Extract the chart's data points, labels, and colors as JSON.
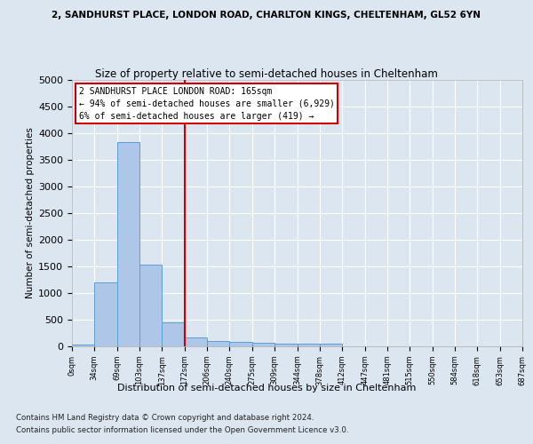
{
  "suptitle": "2, SANDHURST PLACE, LONDON ROAD, CHARLTON KINGS, CHELTENHAM, GL52 6YN",
  "title": "Size of property relative to semi-detached houses in Cheltenham",
  "xlabel": "Distribution of semi-detached houses by size in Cheltenham",
  "ylabel": "Number of semi-detached properties",
  "footnote1": "Contains HM Land Registry data © Crown copyright and database right 2024.",
  "footnote2": "Contains public sector information licensed under the Open Government Licence v3.0.",
  "bar_edges": [
    0,
    34,
    69,
    103,
    137,
    172,
    206,
    240,
    275,
    309,
    344,
    378,
    412,
    447,
    481,
    515,
    550,
    584,
    618,
    653,
    687
  ],
  "bar_heights": [
    30,
    1200,
    3830,
    1530,
    450,
    175,
    100,
    80,
    60,
    50,
    50,
    50,
    0,
    0,
    0,
    0,
    0,
    0,
    0,
    0
  ],
  "bar_color": "#aec6e8",
  "bar_edge_color": "#5a9fd4",
  "vline_x": 172,
  "vline_color": "#cc0000",
  "annotation_text": "2 SANDHURST PLACE LONDON ROAD: 165sqm\n← 94% of semi-detached houses are smaller (6,929)\n6% of semi-detached houses are larger (419) →",
  "annotation_box_color": "#ffffff",
  "annotation_box_edge": "#cc0000",
  "ylim": [
    0,
    5000
  ],
  "yticks": [
    0,
    500,
    1000,
    1500,
    2000,
    2500,
    3000,
    3500,
    4000,
    4500,
    5000
  ],
  "bg_color": "#dce6f0",
  "plot_bg_color": "#dce6f0",
  "grid_color": "#ffffff"
}
